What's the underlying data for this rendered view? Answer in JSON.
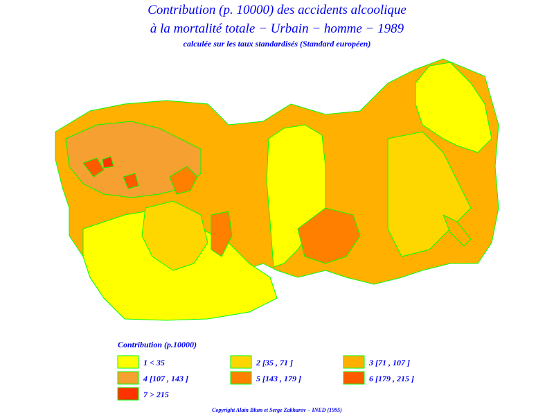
{
  "header": {
    "title_line1": "Contribution (p. 10000) des accidents alcoolique",
    "title_line2": "à la mortalité totale − Urbain − homme − 1989",
    "subtitle": "calculée sur les taux standardisés (Standard européen)"
  },
  "legend": {
    "title": "Contribution (p.10000)",
    "items": [
      {
        "label": "1 < 35",
        "color": "#ffff00"
      },
      {
        "label": "2 [35 , 71 ]",
        "color": "#ffd700"
      },
      {
        "label": "3 [71 , 107 ]",
        "color": "#ffb000"
      },
      {
        "label": "4 [107 , 143 ]",
        "color": "#f5a030"
      },
      {
        "label": "5 [143 , 179 ]",
        "color": "#ff8000"
      },
      {
        "label": "6 [179 , 215 ]",
        "color": "#ff5a00"
      },
      {
        "label": "7 > 215",
        "color": "#ff3300"
      }
    ]
  },
  "footer": {
    "copyright": "Copyright Alain Blum et Serge Zakharov − INED (1995)"
  }
}
